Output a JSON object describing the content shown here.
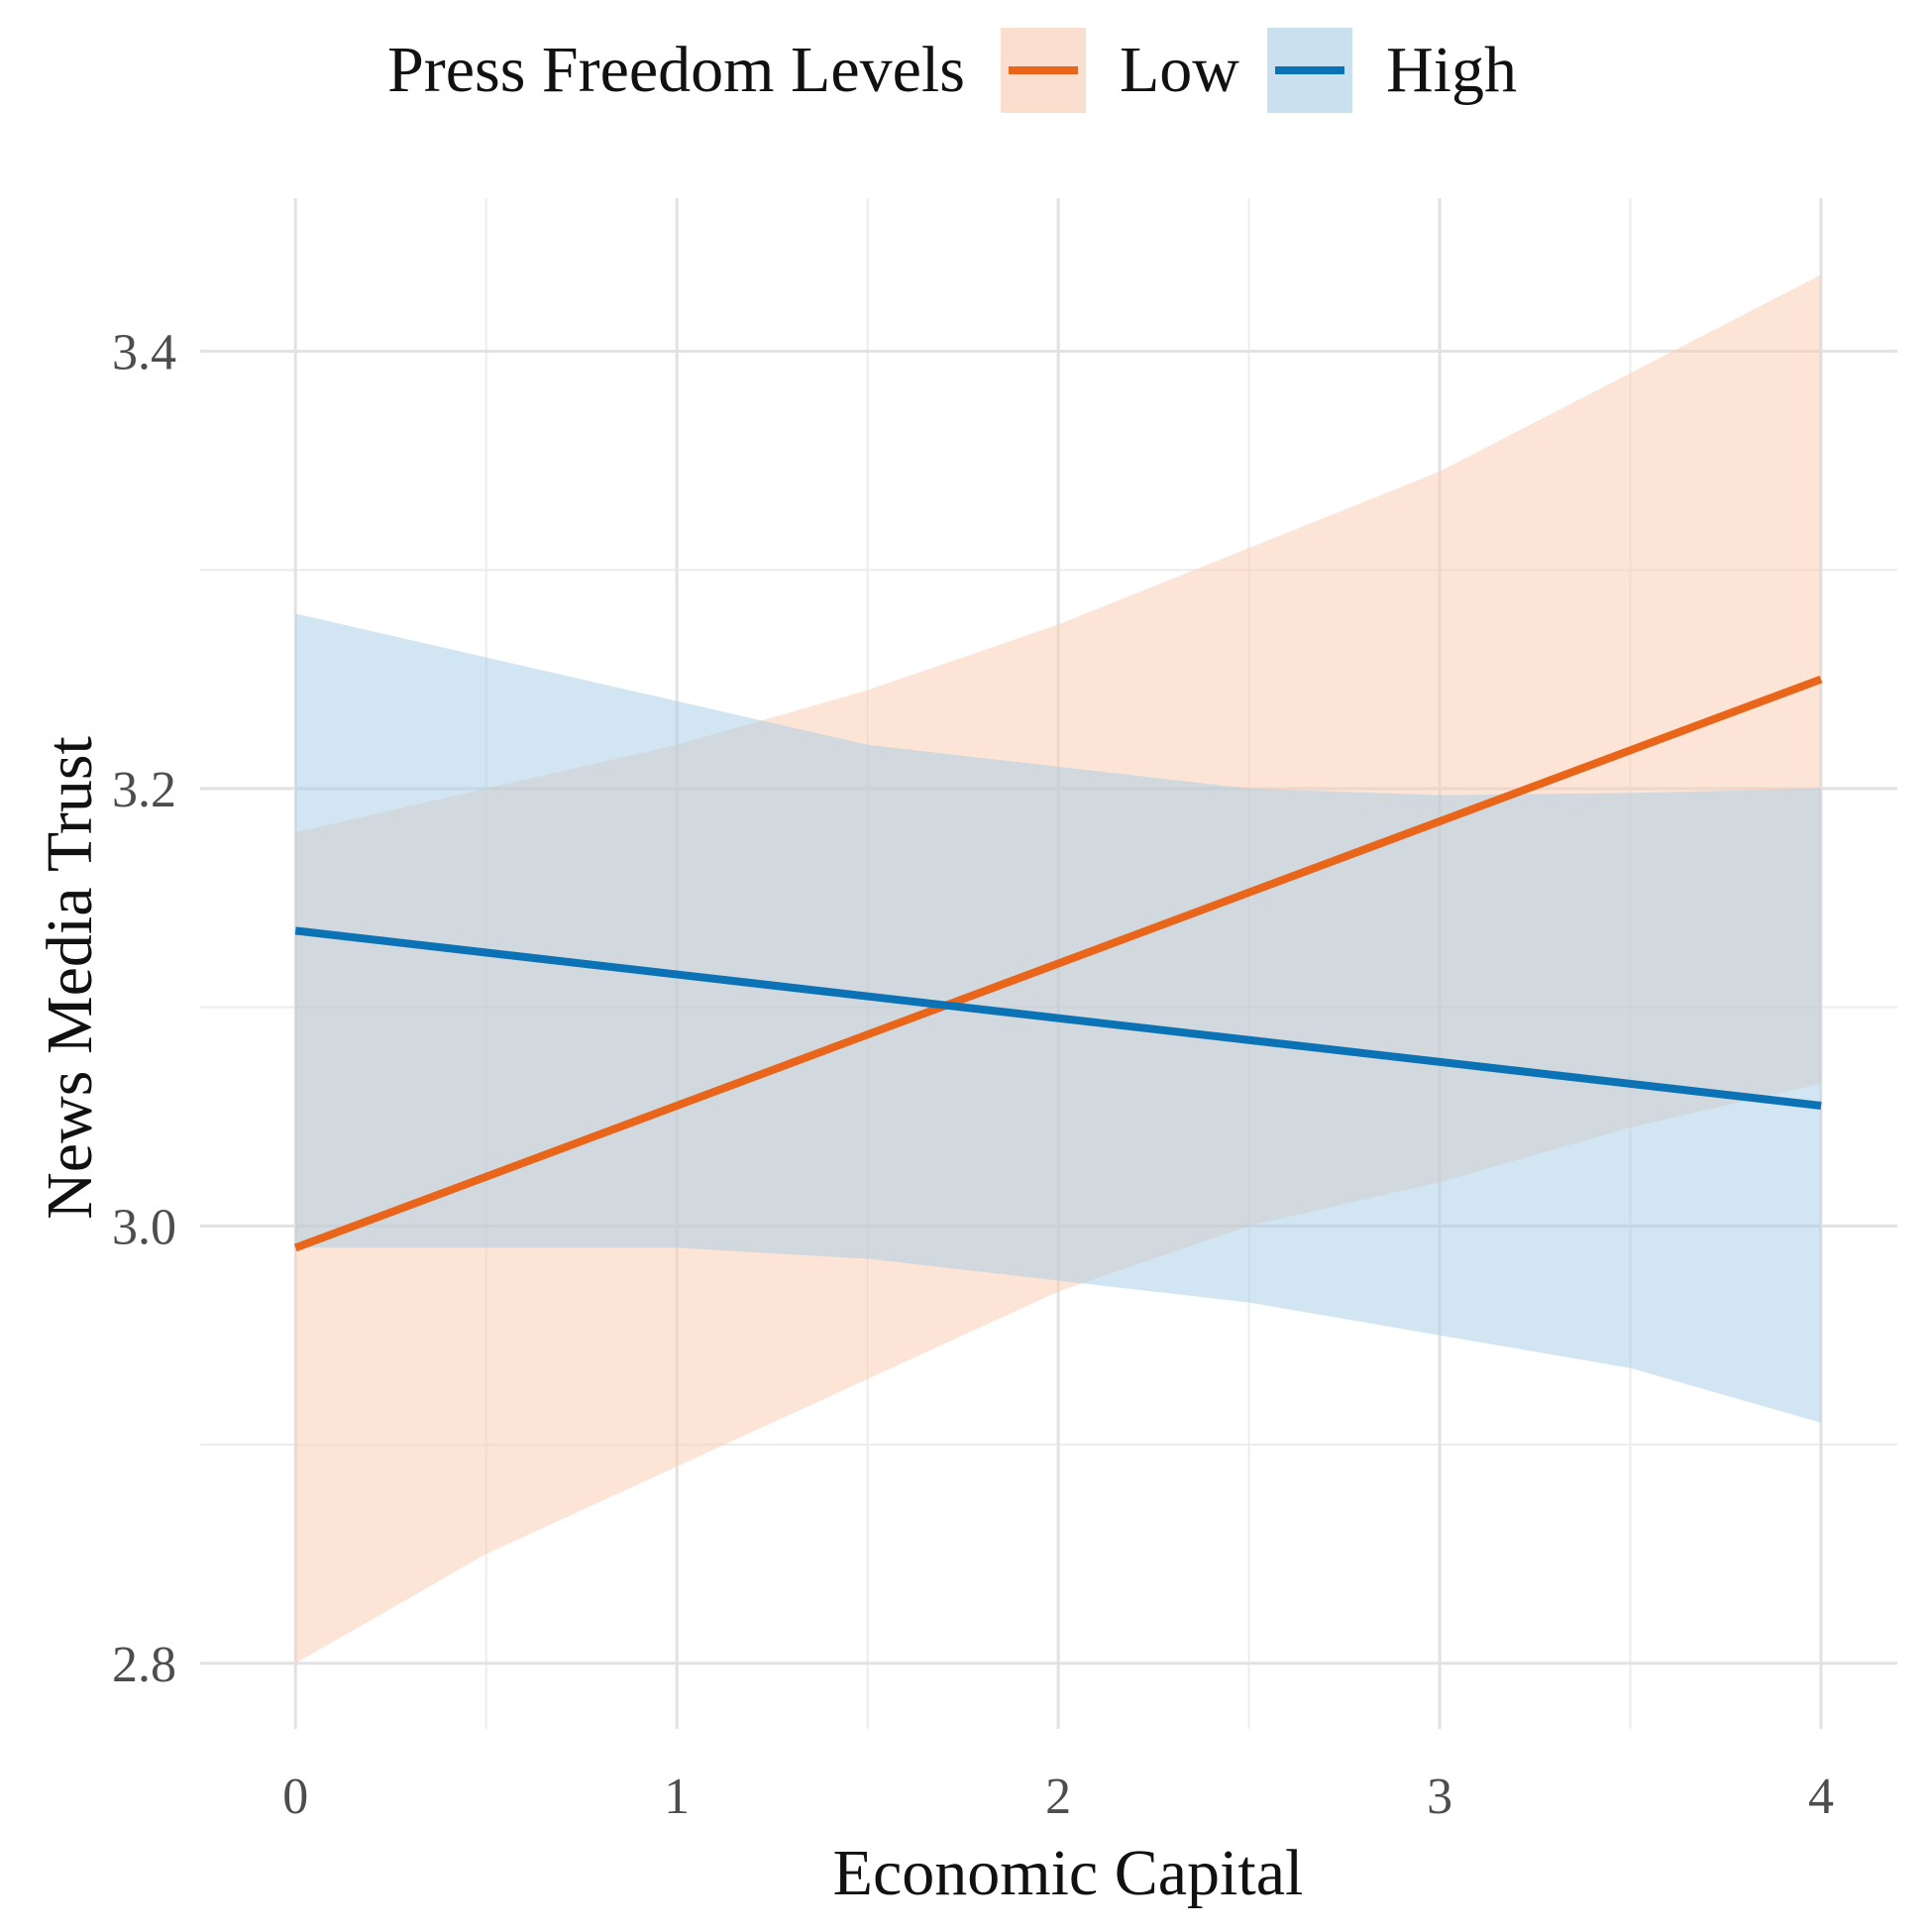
{
  "chart_data": {
    "type": "line",
    "legend": {
      "title": "Press Freedom Levels",
      "position": "top"
    },
    "x": [
      0,
      4
    ],
    "xlabel": "Economic Capital",
    "ylabel": "News Media Trust",
    "xlim": [
      -0.25,
      4.2
    ],
    "ylim": [
      2.77,
      3.47
    ],
    "xticks": [
      0,
      1,
      2,
      3,
      4
    ],
    "xtick_labels": [
      "0",
      "1",
      "2",
      "3",
      "4"
    ],
    "yticks": [
      2.8,
      3.0,
      3.2,
      3.4
    ],
    "ytick_labels": [
      "2.8",
      "3.0",
      "3.2",
      "3.4"
    ],
    "grid": true,
    "series": [
      {
        "name": "Low",
        "color": "#e8651a",
        "band_color": "#f9c9ad",
        "line": {
          "x": [
            0,
            4
          ],
          "y": [
            2.99,
            3.25
          ]
        },
        "ci": {
          "x": [
            0,
            0.5,
            1,
            1.5,
            2,
            2.5,
            3,
            3.5,
            4
          ],
          "lower": [
            2.8,
            2.85,
            2.89,
            2.93,
            2.97,
            3.0,
            3.02,
            3.045,
            3.065
          ],
          "upper": [
            3.18,
            3.2,
            3.22,
            3.245,
            3.275,
            3.31,
            3.345,
            3.39,
            3.435
          ]
        }
      },
      {
        "name": "High",
        "color": "#0a72b5",
        "band_color": "#a6cbe5",
        "line": {
          "x": [
            0,
            4
          ],
          "y": [
            3.135,
            3.055
          ]
        },
        "ci": {
          "x": [
            0,
            0.5,
            1,
            1.5,
            2,
            2.5,
            3,
            3.5,
            4
          ],
          "lower": [
            2.99,
            2.99,
            2.99,
            2.985,
            2.975,
            2.965,
            2.95,
            2.935,
            2.91
          ],
          "upper": [
            3.28,
            3.26,
            3.24,
            3.22,
            3.21,
            3.2,
            3.197,
            3.198,
            3.2
          ]
        }
      }
    ]
  }
}
